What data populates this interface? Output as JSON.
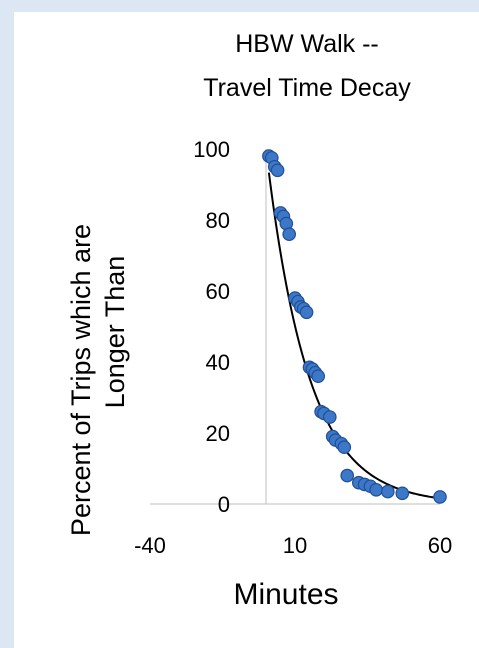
{
  "chart_data": {
    "type": "scatter",
    "title": [
      "HBW Walk --",
      "Travel Time Decay"
    ],
    "xlabel": "Minutes",
    "ylabel": [
      "Percent of Trips which are",
      "Longer Than"
    ],
    "xlim": [
      -40,
      60
    ],
    "ylim": [
      0,
      100
    ],
    "xticks": [
      "-40",
      "10",
      "60"
    ],
    "yticks": [
      "0",
      "20",
      "40",
      "60",
      "80",
      "100"
    ],
    "grid": false,
    "legend": "none",
    "marker_color": "#3d78c8",
    "marker_edge": "#1f4f96",
    "trendline_color": "#000000",
    "series": [
      {
        "points": [
          [
            1,
            98
          ],
          [
            2,
            97.5
          ],
          [
            3,
            95
          ],
          [
            4,
            94
          ],
          [
            5,
            82
          ],
          [
            6,
            81
          ],
          [
            7,
            79
          ],
          [
            8,
            76
          ],
          [
            10,
            58
          ],
          [
            11,
            57
          ],
          [
            12,
            55.5
          ],
          [
            13,
            55
          ],
          [
            14,
            54
          ],
          [
            15,
            38.5
          ],
          [
            16,
            38
          ],
          [
            17,
            37
          ],
          [
            18,
            36
          ],
          [
            19,
            26
          ],
          [
            20,
            25.5
          ],
          [
            22,
            24.5
          ],
          [
            23,
            19
          ],
          [
            24,
            18
          ],
          [
            26,
            17
          ],
          [
            27,
            16
          ],
          [
            28,
            8
          ],
          [
            32,
            6
          ],
          [
            34,
            5.5
          ],
          [
            36,
            5
          ],
          [
            38,
            4
          ],
          [
            42,
            3.5
          ],
          [
            47,
            3
          ],
          [
            60,
            2
          ]
        ]
      }
    ],
    "trendline": {
      "type": "exponential",
      "a": 100,
      "b": 0.069
    }
  }
}
